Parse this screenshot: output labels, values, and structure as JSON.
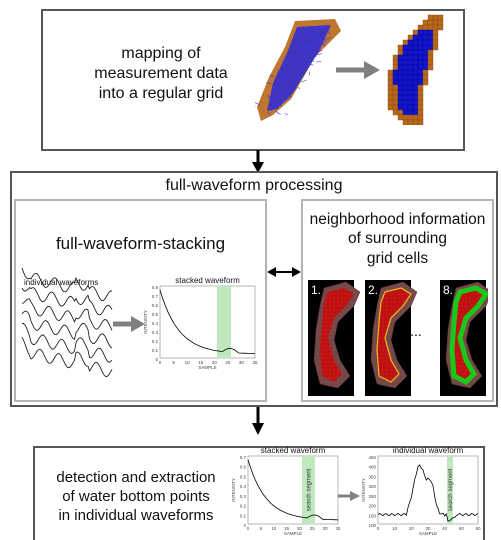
{
  "step1": {
    "lines": [
      "mapping of",
      "measurement data",
      "into a regular grid"
    ]
  },
  "step2": {
    "title": "full-waveform processing",
    "stacking": {
      "title": "full-waveform-stacking",
      "individual_label": "individual waveforms",
      "stacked_label": "stacked waveform",
      "chart_ylabel": "INTENSITY",
      "chart_xlabel": "SAMPLE",
      "y_ticks": [
        "0.8",
        "0.7",
        "0.6",
        "0.5",
        "0.4",
        "0.3",
        "0.2",
        "0.1",
        "0"
      ],
      "x_ticks": [
        "0",
        "5",
        "10",
        "15",
        "20",
        "25",
        "30",
        "35"
      ]
    },
    "neighborhood": {
      "lines": [
        "neighborhood information",
        "of surrounding",
        "grid cells"
      ],
      "panel_labels": [
        "1.",
        "2.",
        "8."
      ],
      "ellipsis": "..."
    }
  },
  "step3": {
    "lines": [
      "detection and extraction",
      "of water bottom points",
      "in individual waveforms"
    ],
    "stacked_title": "stacked waveform",
    "individual_title": "individual waveform",
    "segment_label": "search segment",
    "ylabel": "INTENSITY",
    "xlabel": "SAMPLE",
    "left_y_ticks": [
      "0.7",
      "0.6",
      "0.5",
      "0.4",
      "0.3",
      "0.2",
      "0.1",
      "0"
    ],
    "left_x_ticks": [
      "0",
      "5",
      "10",
      "15",
      "20",
      "25",
      "30",
      "35"
    ],
    "right_y_ticks": [
      "450",
      "400",
      "350",
      "300",
      "250",
      "200",
      "150",
      "100"
    ],
    "right_x_ticks": [
      "0",
      "10",
      "20",
      "30",
      "40",
      "50",
      "60"
    ]
  },
  "colors": {
    "water_blue": "#1414c8",
    "terrain_brown": "#b8681a",
    "grid_red": "#c81414",
    "highlight_green": "#19c819",
    "segment_green": "#bfe8bf",
    "arrow_gray": "#808080"
  }
}
